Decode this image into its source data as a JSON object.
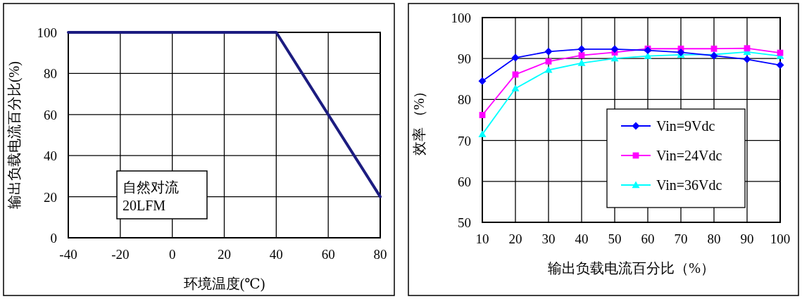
{
  "chart_data": [
    {
      "type": "line",
      "xlabel": "环境温度(℃)",
      "ylabel": "输出负载电流百分比(%)",
      "x": [
        -40,
        40,
        80
      ],
      "series": [
        {
          "color": "#1c1c80",
          "values": [
            100,
            100,
            20
          ]
        }
      ],
      "xlim": [
        -40,
        80
      ],
      "xticks": [
        -40,
        -20,
        0,
        20,
        40,
        60,
        80
      ],
      "ylim": [
        0,
        100
      ],
      "yticks": [
        0,
        20,
        40,
        60,
        80,
        100
      ],
      "grid": true,
      "annotations": [
        "自然对流",
        "20LFM"
      ]
    },
    {
      "type": "line",
      "xlabel": "输出负载电流百分比（%）",
      "ylabel": "效率 （%）",
      "x": [
        10,
        20,
        30,
        40,
        50,
        60,
        70,
        80,
        90,
        100
      ],
      "series": [
        {
          "name": "Vin=9Vdc",
          "color": "#0000ff",
          "marker": "diamond",
          "values": [
            84.5,
            90.2,
            91.7,
            92.3,
            92.3,
            92.0,
            91.5,
            90.7,
            89.8,
            88.4
          ]
        },
        {
          "name": "Vin=24Vdc",
          "color": "#ff00ff",
          "marker": "square",
          "values": [
            76.2,
            86.1,
            89.3,
            90.8,
            91.5,
            92.4,
            92.4,
            92.4,
            92.5,
            91.4
          ]
        },
        {
          "name": "Vin=36Vdc",
          "color": "#00ffff",
          "marker": "triangle",
          "values": [
            71.5,
            82.7,
            87.2,
            88.9,
            90.0,
            90.6,
            90.9,
            91.0,
            91.6,
            90.6
          ]
        }
      ],
      "xlim": [
        10,
        100
      ],
      "xticks": [
        10,
        20,
        30,
        40,
        50,
        60,
        70,
        80,
        90,
        100
      ],
      "ylim": [
        50,
        100
      ],
      "yticks": [
        50,
        60,
        70,
        80,
        90,
        100
      ],
      "grid": true,
      "legend": "right"
    }
  ]
}
